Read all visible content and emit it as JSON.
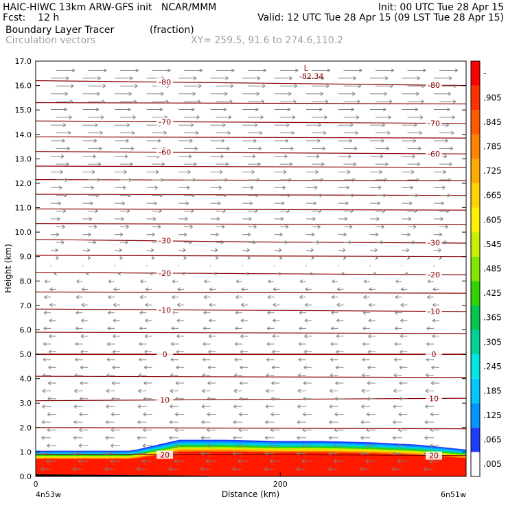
{
  "header": {
    "line1_left": "HAIC-HIWC 13km ARW-GFS init   NCAR/MMM",
    "line1_right": "Init: 00 UTC Tue 28 Apr 15",
    "line2_left": "Fcst:    12 h",
    "line2_right": "Valid: 12 UTC Tue 28 Apr 15 (09 LST Tue 28 Apr 15)",
    "field_name": "Boundary Layer Tracer",
    "field_units": "(fraction)",
    "vector_label": "Circulation vectors",
    "xy_label": "XY= 259.5, 91.6 to 274.6,110.2"
  },
  "colors": {
    "contour": "#8b0000",
    "vector": "#808080",
    "tracer_high": "#ff1a00",
    "tracer_low": "#1e3cff"
  },
  "chart_data": {
    "type": "heatmap",
    "title": "Boundary Layer Tracer",
    "units": "(fraction)",
    "xlabel": "Distance (km)",
    "ylabel": "Height (km)",
    "xlim": [
      0,
      352
    ],
    "ylim": [
      0,
      17
    ],
    "x_ticks": [
      0,
      200
    ],
    "y_ticks": [
      "0.0",
      "1.0",
      "2.0",
      "3.0",
      "4.0",
      "5.0",
      "6.0",
      "7.0",
      "8.0",
      "9.0",
      "10.0",
      "11.0",
      "12.0",
      "13.0",
      "14.0",
      "15.0",
      "16.0",
      "17.0"
    ],
    "x_end_labels": {
      "left": "4n53w",
      "right": "6n51w"
    },
    "colorbar": {
      "labels": [
        ".005",
        ".065",
        ".125",
        ".185",
        ".245",
        ".305",
        ".365",
        ".425",
        ".485",
        ".545",
        ".605",
        ".665",
        ".725",
        ".785",
        ".845",
        ".905",
        "-"
      ],
      "colors": [
        "#ffffff",
        "#1e3cff",
        "#0096ff",
        "#00c8ff",
        "#00e6e6",
        "#00d296",
        "#00c850",
        "#32d200",
        "#82e600",
        "#c8f000",
        "#fff000",
        "#ffd200",
        "#ffaa00",
        "#ff8200",
        "#ff5a00",
        "#ff3200",
        "#ff0000"
      ]
    },
    "temperature_contours": [
      {
        "level": 20,
        "y": [
          0.9,
          0.9,
          0.85
        ]
      },
      {
        "level": 10,
        "y": [
          3.1,
          3.15,
          3.2
        ]
      },
      {
        "level": 0,
        "y": [
          5.0,
          5.0,
          5.0
        ]
      },
      {
        "level": -10,
        "y": [
          6.85,
          6.8,
          6.75
        ]
      },
      {
        "level": -20,
        "y": [
          8.35,
          8.3,
          8.25
        ]
      },
      {
        "level": -30,
        "y": [
          9.7,
          9.6,
          9.55
        ]
      },
      {
        "level": -60,
        "y": [
          13.3,
          13.25,
          13.2
        ]
      },
      {
        "level": -70,
        "y": [
          14.55,
          14.5,
          14.45
        ]
      },
      {
        "level": -80,
        "y": [
          16.2,
          16.1,
          16.0
        ]
      }
    ],
    "unlabeled_contours_y": [
      2.0,
      4.1,
      5.9,
      7.55,
      9.05,
      10.35,
      10.95,
      11.55,
      12.15,
      12.7,
      13.9,
      15.3
    ],
    "low_marker": {
      "symbol": "L",
      "value": "-82.34",
      "x": 221,
      "y": 16.6
    },
    "tracer_top_km": [
      1.05,
      1.05,
      1.05,
      1.5,
      1.5,
      1.45,
      1.45,
      1.4,
      1.3,
      1.1
    ],
    "wind_reversal_height_km": 9.0
  }
}
